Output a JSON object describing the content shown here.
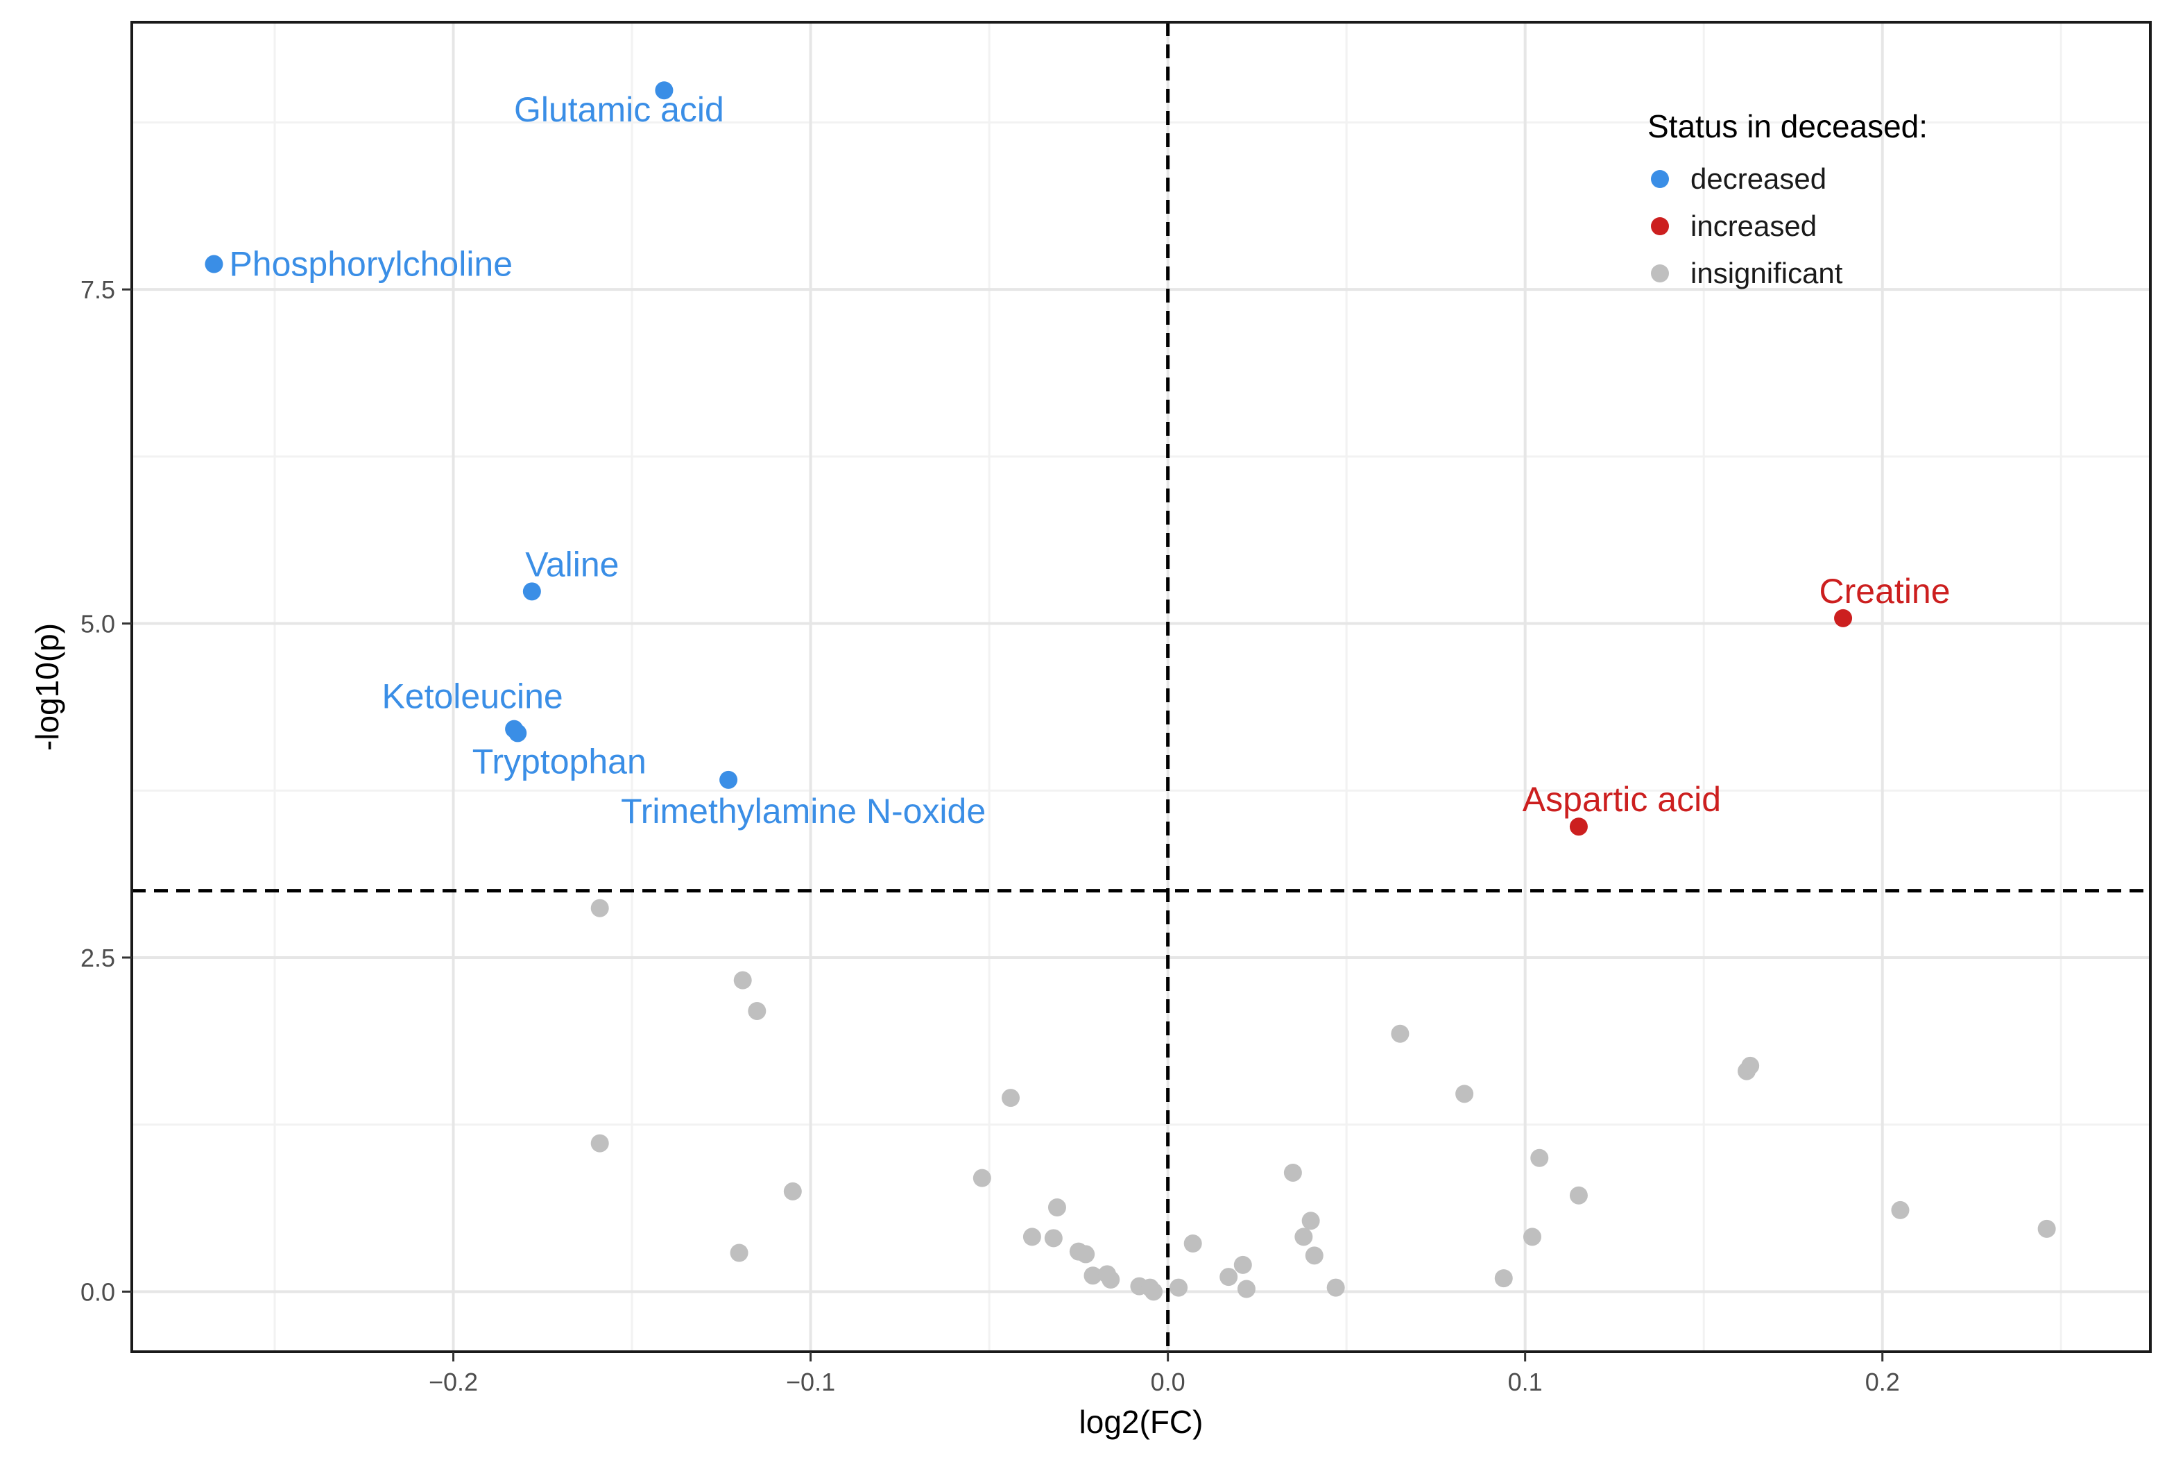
{
  "chart_data": {
    "type": "scatter",
    "xlabel": "log2(FC)",
    "ylabel": "-log10(p)",
    "xlim": [
      -0.29,
      0.275
    ],
    "ylim": [
      -0.45,
      9.5
    ],
    "x_ticks": [
      -0.2,
      -0.1,
      0.0,
      0.1,
      0.2
    ],
    "x_tick_labels": [
      "−0.2",
      "−0.1",
      "0.0",
      "0.1",
      "0.2"
    ],
    "y_ticks": [
      0.0,
      2.5,
      5.0,
      7.5
    ],
    "y_tick_labels": [
      "0.0",
      "2.5",
      "5.0",
      "7.5"
    ],
    "grid": true,
    "thresholds": {
      "x": 0.0,
      "y": 3.0
    },
    "legend": {
      "title": "Status in deceased:",
      "position": "top-right",
      "entries": [
        {
          "label": "decreased",
          "color": "#3a8ee6"
        },
        {
          "label": "increased",
          "color": "#cc1f1f"
        },
        {
          "label": "insignificant",
          "color": "#bfbfbf"
        }
      ]
    },
    "colors": {
      "decreased": "#3a8ee6",
      "increased": "#cc1f1f",
      "insignificant": "#bfbfbf"
    },
    "points": [
      {
        "x": -0.141,
        "y": 8.99,
        "status": "decreased",
        "label": "Glutamic acid"
      },
      {
        "x": -0.267,
        "y": 7.69,
        "status": "decreased",
        "label": "Phosphorylcholine"
      },
      {
        "x": -0.178,
        "y": 5.24,
        "status": "decreased",
        "label": "Valine"
      },
      {
        "x": -0.183,
        "y": 4.21,
        "status": "decreased",
        "label": "Ketoleucine"
      },
      {
        "x": -0.182,
        "y": 4.18,
        "status": "decreased",
        "label": "Tryptophan"
      },
      {
        "x": -0.123,
        "y": 3.83,
        "status": "decreased",
        "label": "Trimethylamine N-oxide"
      },
      {
        "x": 0.189,
        "y": 5.04,
        "status": "increased",
        "label": "Creatine"
      },
      {
        "x": 0.115,
        "y": 3.48,
        "status": "increased",
        "label": "Aspartic acid"
      },
      {
        "x": -0.159,
        "y": 2.87,
        "status": "insignificant"
      },
      {
        "x": -0.119,
        "y": 2.33,
        "status": "insignificant"
      },
      {
        "x": -0.115,
        "y": 2.1,
        "status": "insignificant"
      },
      {
        "x": -0.159,
        "y": 1.11,
        "status": "insignificant"
      },
      {
        "x": -0.105,
        "y": 0.75,
        "status": "insignificant"
      },
      {
        "x": -0.12,
        "y": 0.29,
        "status": "insignificant"
      },
      {
        "x": -0.044,
        "y": 1.45,
        "status": "insignificant"
      },
      {
        "x": -0.052,
        "y": 0.85,
        "status": "insignificant"
      },
      {
        "x": -0.031,
        "y": 0.63,
        "status": "insignificant"
      },
      {
        "x": -0.038,
        "y": 0.41,
        "status": "insignificant"
      },
      {
        "x": -0.032,
        "y": 0.4,
        "status": "insignificant"
      },
      {
        "x": -0.025,
        "y": 0.3,
        "status": "insignificant"
      },
      {
        "x": -0.023,
        "y": 0.28,
        "status": "insignificant"
      },
      {
        "x": -0.021,
        "y": 0.12,
        "status": "insignificant"
      },
      {
        "x": -0.017,
        "y": 0.13,
        "status": "insignificant"
      },
      {
        "x": -0.016,
        "y": 0.09,
        "status": "insignificant"
      },
      {
        "x": -0.008,
        "y": 0.04,
        "status": "insignificant"
      },
      {
        "x": -0.005,
        "y": 0.03,
        "status": "insignificant"
      },
      {
        "x": -0.004,
        "y": 0.0,
        "status": "insignificant"
      },
      {
        "x": 0.003,
        "y": 0.03,
        "status": "insignificant"
      },
      {
        "x": 0.007,
        "y": 0.36,
        "status": "insignificant"
      },
      {
        "x": 0.017,
        "y": 0.11,
        "status": "insignificant"
      },
      {
        "x": 0.021,
        "y": 0.2,
        "status": "insignificant"
      },
      {
        "x": 0.022,
        "y": 0.02,
        "status": "insignificant"
      },
      {
        "x": 0.035,
        "y": 0.89,
        "status": "insignificant"
      },
      {
        "x": 0.038,
        "y": 0.41,
        "status": "insignificant"
      },
      {
        "x": 0.04,
        "y": 0.53,
        "status": "insignificant"
      },
      {
        "x": 0.041,
        "y": 0.27,
        "status": "insignificant"
      },
      {
        "x": 0.047,
        "y": 0.03,
        "status": "insignificant"
      },
      {
        "x": 0.065,
        "y": 1.93,
        "status": "insignificant"
      },
      {
        "x": 0.083,
        "y": 1.48,
        "status": "insignificant"
      },
      {
        "x": 0.094,
        "y": 0.1,
        "status": "insignificant"
      },
      {
        "x": 0.102,
        "y": 0.41,
        "status": "insignificant"
      },
      {
        "x": 0.104,
        "y": 1.0,
        "status": "insignificant"
      },
      {
        "x": 0.115,
        "y": 0.72,
        "status": "insignificant"
      },
      {
        "x": 0.162,
        "y": 1.65,
        "status": "insignificant"
      },
      {
        "x": 0.163,
        "y": 1.69,
        "status": "insignificant"
      },
      {
        "x": 0.205,
        "y": 0.61,
        "status": "insignificant"
      },
      {
        "x": 0.246,
        "y": 0.47,
        "status": "insignificant"
      }
    ]
  }
}
